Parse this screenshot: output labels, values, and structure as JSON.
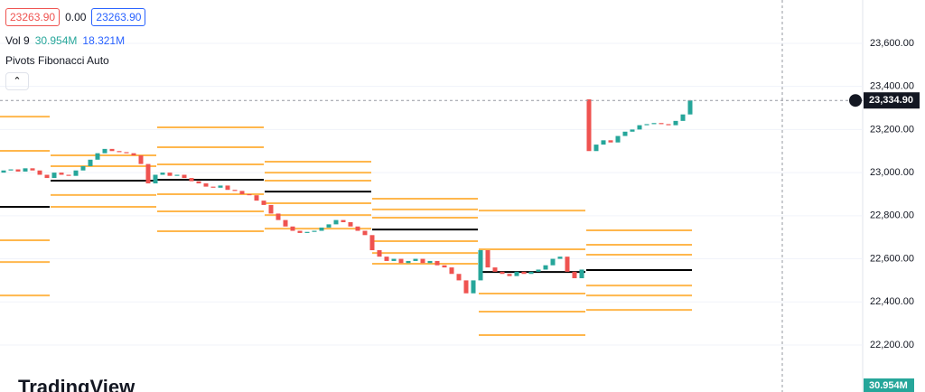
{
  "header": {
    "open_chip": "23263.90",
    "change": "0.00",
    "close_chip": "23263.90"
  },
  "indicators": {
    "volume": {
      "label": "Vol 9",
      "value": "30.954M",
      "ma": "18.321M"
    },
    "pivots": "Pivots Fibonacci Auto"
  },
  "chart_data": {
    "type": "candlestick",
    "ylim": [
      21982,
      23801
    ],
    "yticks": [
      {
        "value": 23600,
        "label": "23,600.00"
      },
      {
        "value": 23400,
        "label": "23,400.00"
      },
      {
        "value": 23200,
        "label": "23,200.00"
      },
      {
        "value": 23000,
        "label": "23,000.00"
      },
      {
        "value": 22800,
        "label": "22,800.00"
      },
      {
        "value": 22600,
        "label": "22,600.00"
      },
      {
        "value": 22400,
        "label": "22,400.00"
      },
      {
        "value": 22200,
        "label": "22,200.00"
      }
    ],
    "up_color": "#26a69a",
    "down_color": "#ef5350",
    "opens": [
      23000,
      23010,
      23015,
      23005,
      23020,
      23010,
      22990,
      22975,
      23000,
      22990,
      22985,
      23010,
      23030,
      23060,
      23090,
      23110,
      23100,
      23095,
      23090,
      23080,
      23040,
      22950,
      22990,
      23000,
      22985,
      22990,
      22975,
      22960,
      22950,
      22935,
      22930,
      22940,
      22920,
      22915,
      22900,
      22895,
      22870,
      22850,
      22810,
      22780,
      22750,
      22730,
      22720,
      22725,
      22730,
      22745,
      22760,
      22780,
      22770,
      22750,
      22730,
      22710,
      22640,
      22610,
      22590,
      22600,
      22580,
      22590,
      22600,
      22580,
      22590,
      22570,
      22560,
      22530,
      22500,
      22440,
      22500,
      22640,
      22560,
      22540,
      22530,
      22520,
      22540,
      22530,
      22540,
      22550,
      22570,
      22600,
      22610,
      22540,
      22510,
      23340,
      23100,
      23130,
      23150,
      23140,
      23170,
      23190,
      23200,
      23220,
      23225,
      23230,
      23225,
      23220,
      23240,
      23270
    ],
    "closes": [
      23010,
      23015,
      23005,
      23020,
      23010,
      22990,
      22975,
      23000,
      22990,
      22985,
      23010,
      23030,
      23060,
      23090,
      23110,
      23100,
      23095,
      23090,
      23080,
      23040,
      22950,
      22990,
      23000,
      22985,
      22990,
      22975,
      22960,
      22950,
      22935,
      22930,
      22940,
      22920,
      22915,
      22900,
      22895,
      22870,
      22850,
      22810,
      22780,
      22750,
      22730,
      22720,
      22725,
      22730,
      22745,
      22760,
      22780,
      22770,
      22750,
      22730,
      22710,
      22640,
      22610,
      22590,
      22600,
      22580,
      22590,
      22600,
      22580,
      22590,
      22570,
      22560,
      22530,
      22500,
      22440,
      22500,
      22640,
      22560,
      22540,
      22530,
      22520,
      22540,
      22530,
      22540,
      22550,
      22570,
      22600,
      22610,
      22540,
      22510,
      22550,
      23100,
      23130,
      23150,
      23140,
      23170,
      23190,
      23200,
      23220,
      23225,
      23230,
      23225,
      23220,
      23240,
      23270,
      23335
    ],
    "pivot_color": "#ffb74d",
    "pivot_sessions": [
      {
        "pivot": 22841,
        "levels": [
          23260,
          23101,
          22686,
          22585,
          22430
        ]
      },
      {
        "pivot": 22963,
        "levels": [
          23080,
          23030,
          22896,
          22841
        ]
      },
      {
        "pivot": 22967,
        "levels": [
          23210,
          23118,
          23038,
          22900,
          22820,
          22728
        ]
      },
      {
        "pivot": 22912,
        "levels": [
          23051,
          23000,
          22963,
          22858,
          22803,
          22740
        ]
      },
      {
        "pivot": 22736,
        "levels": [
          22879,
          22829,
          22791,
          22682,
          22627,
          22577
        ]
      },
      {
        "pivot": 22539,
        "levels": [
          22824,
          22644,
          22439,
          22355,
          22246
        ]
      },
      {
        "pivot": 22548,
        "levels": [
          22732,
          22665,
          22619,
          22476,
          22430,
          22363
        ]
      }
    ],
    "last_price": {
      "value": 23334.9,
      "label": "23,334.90"
    },
    "volume_label": "30.954M"
  },
  "watermark": "TradingView"
}
